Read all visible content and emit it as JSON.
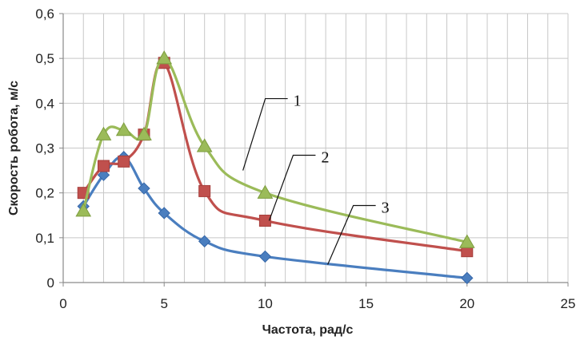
{
  "chart_data": {
    "type": "line",
    "title": "",
    "xlabel": "Частота, рад/с",
    "ylabel": "Скорость робота, м/с",
    "xlim": [
      0,
      25
    ],
    "ylim": [
      0,
      0.6
    ],
    "x_ticks": [
      "0",
      "5",
      "10",
      "15",
      "20",
      "25"
    ],
    "y_ticks": [
      "0",
      "0,1",
      "0,2",
      "0,3",
      "0,4",
      "0,5",
      "0,6"
    ],
    "grid": true,
    "legend": "none",
    "series": [
      {
        "label": "3",
        "color": "#4a7ebf",
        "marker": "diamond",
        "x": [
          1,
          2,
          3,
          4,
          5,
          7,
          10,
          20
        ],
        "y": [
          0.17,
          0.24,
          0.28,
          0.21,
          0.155,
          0.092,
          0.058,
          0.01
        ]
      },
      {
        "label": "2",
        "color": "#c0504d",
        "marker": "square",
        "x": [
          1,
          2,
          3,
          4,
          5,
          7,
          10,
          20
        ],
        "y": [
          0.2,
          0.26,
          0.27,
          0.33,
          0.49,
          0.204,
          0.138,
          0.07
        ]
      },
      {
        "label": "1",
        "color": "#9bbb59",
        "marker": "triangle",
        "x": [
          1,
          2,
          3,
          4,
          5,
          7,
          10,
          20
        ],
        "y": [
          0.16,
          0.33,
          0.34,
          0.33,
          0.5,
          0.304,
          0.2,
          0.09
        ]
      }
    ],
    "annotations": [
      {
        "text": "1",
        "series": "1",
        "x": 8.9,
        "y": 0.25
      },
      {
        "text": "2",
        "series": "2",
        "x": 10.2,
        "y": 0.138
      },
      {
        "text": "3",
        "series": "3",
        "x": 13.1,
        "y": 0.04
      }
    ]
  }
}
